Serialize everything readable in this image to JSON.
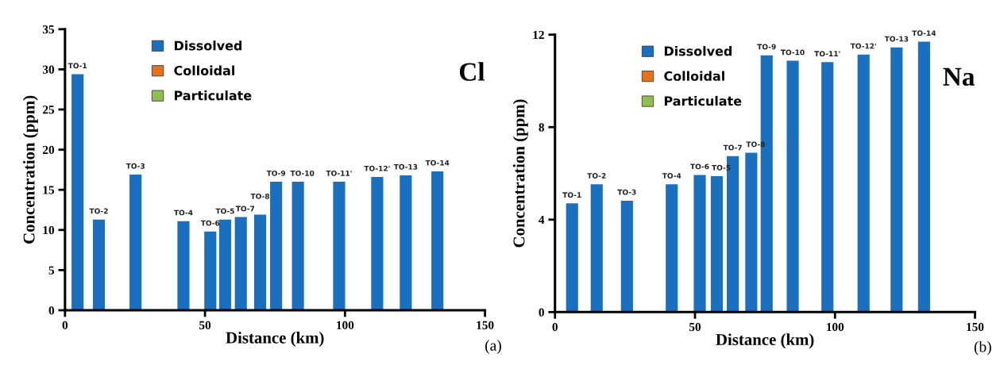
{
  "chart_data": [
    {
      "type": "bar",
      "title": "Cl",
      "xlabel": "Distance (km)",
      "ylabel": "Concentration (ppm)",
      "legend": "top left",
      "grid": false,
      "x": [
        4.5,
        12.1,
        25.2,
        42.3,
        51.9,
        57.2,
        62.8,
        69.7,
        75.4,
        83.2,
        97.9,
        111.5,
        121.7,
        133
      ],
      "series": [
        {
          "name": "Dissolved",
          "color": "#1a6fbf",
          "values": [
            29.4,
            11.3,
            16.9,
            11.1,
            9.8,
            11.3,
            11.6,
            11.9,
            16.0,
            16.0,
            16.0,
            16.6,
            16.8,
            17.3
          ]
        },
        {
          "name": "Colloidal",
          "color": "#e8701a",
          "values": [
            0,
            0,
            0,
            0,
            0,
            0,
            0,
            0,
            0,
            0,
            0,
            0,
            0,
            0
          ]
        },
        {
          "name": "Particulate",
          "color": "#8fc04f",
          "values": [
            0,
            0,
            0,
            0,
            0,
            0,
            0,
            0,
            0,
            0,
            0,
            0,
            0,
            0
          ]
        }
      ],
      "xlim": [
        0,
        150
      ],
      "xticks": [
        0,
        50,
        100,
        150
      ],
      "ylim": [
        0,
        35
      ],
      "yticks": [
        0,
        5,
        10,
        15,
        20,
        25,
        30,
        35
      ],
      "annotations": [
        {
          "text": "TO-1",
          "x": 4.5,
          "y": 29.4
        },
        {
          "text": "TO-2",
          "x": 12.1,
          "y": 11.3
        },
        {
          "text": "TO-3",
          "x": 25.2,
          "y": 16.9
        },
        {
          "text": "TO-4",
          "x": 42.3,
          "y": 11.1
        },
        {
          "text": "TO-6",
          "x": 51.9,
          "y": 9.8
        },
        {
          "text": "TO-5",
          "x": 57.2,
          "y": 11.3
        },
        {
          "text": "TO-7",
          "x": 62.8,
          "y": 11.6
        },
        {
          "text": "TO-8",
          "x": 69.7,
          "y": 11.9
        },
        {
          "text": "TO-9",
          "x": 75.4,
          "y": 16.0
        },
        {
          "text": "TO-10",
          "x": 83.2,
          "y": 16.0
        },
        {
          "text": "TO-11'",
          "x": 97.9,
          "y": 16.0
        },
        {
          "text": "TO-12'",
          "x": 111.5,
          "y": 16.6
        },
        {
          "text": "TO-13",
          "x": 121.7,
          "y": 16.8
        },
        {
          "text": "TO-14",
          "x": 133,
          "y": 17.3
        },
        "(a)"
      ]
    },
    {
      "type": "bar",
      "title": "Na",
      "xlabel": "Distance (km)",
      "ylabel": "Concentration (ppm)",
      "legend": "top left",
      "grid": false,
      "x": [
        6.1,
        14.9,
        25.7,
        41.7,
        51.7,
        57.8,
        63.5,
        70.1,
        75.6,
        84.9,
        97.3,
        110.2,
        122,
        131.8
      ],
      "series": [
        {
          "name": "Dissolved",
          "color": "#1a6fbf",
          "values": [
            4.7,
            5.53,
            4.82,
            5.53,
            5.93,
            5.88,
            6.75,
            6.89,
            11.11,
            10.87,
            10.81,
            11.14,
            11.45,
            11.7
          ]
        },
        {
          "name": "Colloidal",
          "color": "#e8701a",
          "values": [
            0,
            0,
            0,
            0,
            0,
            0,
            0,
            0,
            0,
            0,
            0,
            0,
            0,
            0
          ]
        },
        {
          "name": "Particulate",
          "color": "#8fc04f",
          "values": [
            0,
            0,
            0,
            0,
            0,
            0,
            0,
            0,
            0,
            0,
            0,
            0,
            0,
            0
          ]
        }
      ],
      "xlim": [
        0,
        150
      ],
      "xticks": [
        0,
        50,
        100,
        150
      ],
      "ylim": [
        0,
        12
      ],
      "yticks": [
        0,
        4,
        8,
        12
      ],
      "annotations": [
        {
          "text": "TO-1",
          "x": 6.1,
          "y": 4.7
        },
        {
          "text": "TO-2",
          "x": 14.9,
          "y": 5.53
        },
        {
          "text": "TO-3",
          "x": 25.7,
          "y": 4.82
        },
        {
          "text": "TO-4",
          "x": 41.7,
          "y": 5.53
        },
        {
          "text": "TO-6",
          "x": 51.7,
          "y": 5.93
        },
        {
          "text": "TO-5",
          "x": 57.8,
          "y": 5.88
        },
        {
          "text": "TO-7",
          "x": 63.5,
          "y": 6.75
        },
        {
          "text": "TO-8",
          "x": 70.1,
          "y": 6.89
        },
        {
          "text": "TO-9",
          "x": 75.6,
          "y": 11.11
        },
        {
          "text": "TO-10",
          "x": 84.9,
          "y": 10.87
        },
        {
          "text": "TO-11'",
          "x": 97.3,
          "y": 10.81
        },
        {
          "text": "TO-12'",
          "x": 110.2,
          "y": 11.14
        },
        {
          "text": "TO-13",
          "x": 122,
          "y": 11.45
        },
        {
          "text": "TO-14",
          "x": 131.8,
          "y": 11.7
        },
        "(b)"
      ]
    }
  ]
}
